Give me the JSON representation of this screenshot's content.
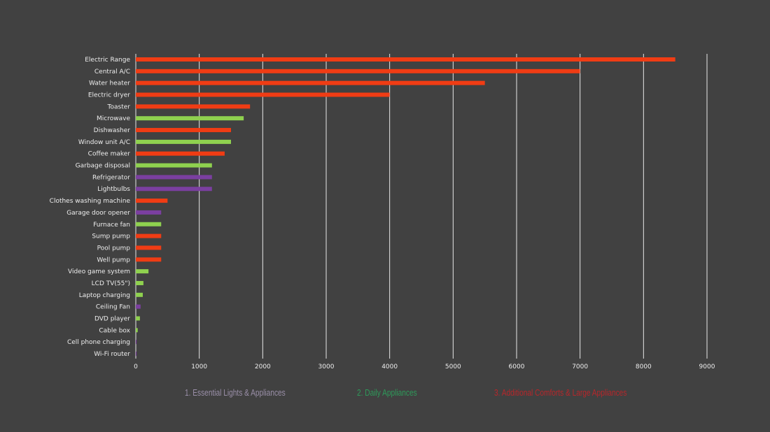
{
  "chart_data": {
    "type": "bar",
    "orientation": "horizontal",
    "title": "",
    "xlabel": "",
    "ylabel": "",
    "xlim": [
      0,
      9000
    ],
    "xticks": [
      0,
      1000,
      2000,
      3000,
      4000,
      5000,
      6000,
      7000,
      8000,
      9000
    ],
    "grid": true,
    "legend_position": "bottom",
    "groups": [
      {
        "id": 1,
        "name": "1. Essential Lights & Appliances",
        "bar_color": "#7b3fa0",
        "legend_color": "#9a8fa8"
      },
      {
        "id": 2,
        "name": "2. Daily Appliances",
        "bar_color": "#8fd14f",
        "legend_color": "#2e9a5a"
      },
      {
        "id": 3,
        "name": "3. Additional Comforts & Large Appliances",
        "bar_color": "#f03c14",
        "legend_color": "#b8262a"
      }
    ],
    "categories": [
      "Electric Range",
      "Central A/C",
      "Water heater",
      "Electric dryer",
      "Toaster",
      "Microwave",
      "Dishwasher",
      "Window unit A/C",
      "Coffee maker",
      "Garbage disposal",
      "Refrigerator",
      "Lightbulbs",
      "Clothes washing machine",
      "Garage door opener",
      "Furnace fan",
      "Sump pump",
      "Pool pump",
      "Well pump",
      "Video game system",
      "LCD TV(55\")",
      "Laptop charging",
      "Ceiling Fan",
      "DVD player",
      "Cable box",
      "Cell phone charging",
      "Wi-Fi router"
    ],
    "values": [
      8500,
      7000,
      5500,
      4000,
      1800,
      1700,
      1500,
      1500,
      1400,
      1200,
      1200,
      1200,
      500,
      400,
      400,
      400,
      400,
      400,
      200,
      120,
      110,
      75,
      65,
      30,
      5,
      5
    ],
    "group_of": [
      3,
      3,
      3,
      3,
      3,
      2,
      3,
      2,
      3,
      2,
      1,
      1,
      3,
      1,
      2,
      3,
      3,
      3,
      2,
      2,
      2,
      1,
      2,
      2,
      1,
      1
    ]
  }
}
